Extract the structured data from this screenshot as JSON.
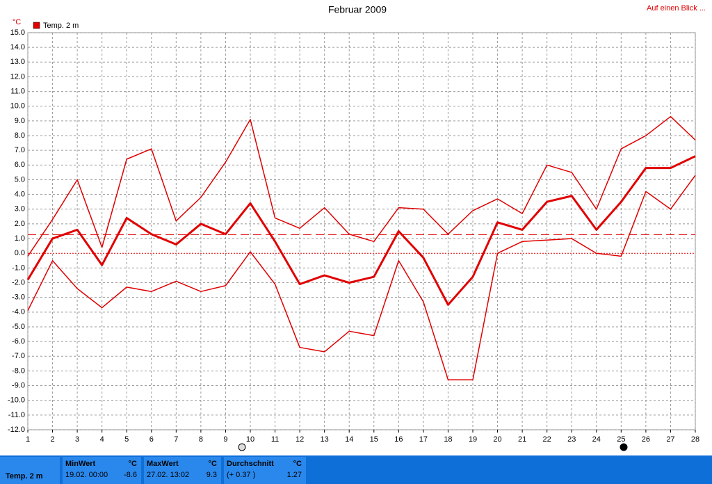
{
  "chart_data": {
    "type": "line",
    "title": "Februar 2009",
    "link": "Auf einen Blick ...",
    "y_label": "°C",
    "x": [
      1,
      2,
      3,
      4,
      5,
      6,
      7,
      8,
      9,
      10,
      11,
      12,
      13,
      14,
      15,
      16,
      17,
      18,
      19,
      20,
      21,
      22,
      23,
      24,
      25,
      26,
      27,
      28
    ],
    "xlim": [
      1,
      28
    ],
    "xticks": [
      1,
      2,
      3,
      4,
      5,
      6,
      7,
      8,
      9,
      10,
      11,
      12,
      13,
      14,
      15,
      16,
      17,
      18,
      19,
      20,
      21,
      22,
      23,
      24,
      25,
      26,
      27,
      28
    ],
    "ylim": [
      -12,
      15
    ],
    "yticks": [
      {
        "value": 15,
        "label": "15.0"
      },
      {
        "value": 14,
        "label": "14.0"
      },
      {
        "value": 13,
        "label": "13.0"
      },
      {
        "value": 12,
        "label": "12.0"
      },
      {
        "value": 11,
        "label": "11.0"
      },
      {
        "value": 10,
        "label": "10.0"
      },
      {
        "value": 9,
        "label": "9.0"
      },
      {
        "value": 8,
        "label": "8.0"
      },
      {
        "value": 7,
        "label": "7.0"
      },
      {
        "value": 6,
        "label": "6.0"
      },
      {
        "value": 5,
        "label": "5.0"
      },
      {
        "value": 4,
        "label": "4.0"
      },
      {
        "value": 3,
        "label": "3.0"
      },
      {
        "value": 2,
        "label": "2.0"
      },
      {
        "value": 1,
        "label": "1.0"
      },
      {
        "value": 0,
        "label": "0.0"
      },
      {
        "value": -1,
        "label": "-1.0"
      },
      {
        "value": -2,
        "label": "-2.0"
      },
      {
        "value": -3,
        "label": "-3.0"
      },
      {
        "value": -4,
        "label": "-4.0"
      },
      {
        "value": -5,
        "label": "-5.0"
      },
      {
        "value": -6,
        "label": "-6.0"
      },
      {
        "value": -7,
        "label": "-7.0"
      },
      {
        "value": -8,
        "label": "-8.0"
      },
      {
        "value": -9,
        "label": "-9.0"
      },
      {
        "value": -10,
        "label": "-10.0"
      },
      {
        "value": -11,
        "label": "-11.0"
      },
      {
        "value": -12,
        "label": "-12.0"
      }
    ],
    "grid": true,
    "legend": {
      "name": "Temp. 2 m",
      "color": "#e00000"
    },
    "series": [
      {
        "color": "#e00000",
        "values": [
          -0.2,
          2.3,
          5.0,
          0.4,
          6.4,
          7.1,
          2.2,
          3.8,
          6.2,
          9.1,
          2.4,
          1.7,
          3.1,
          1.3,
          0.8,
          3.1,
          3.0,
          1.3,
          2.9,
          3.7,
          2.7,
          6.0,
          5.5,
          3.0,
          7.1,
          8.0,
          9.3,
          7.7
        ]
      },
      {
        "color": "#e00000",
        "values": [
          -1.8,
          1.0,
          1.6,
          -0.8,
          2.4,
          1.3,
          0.6,
          2.0,
          1.3,
          3.4,
          0.8,
          -2.1,
          -1.5,
          -2.0,
          -1.6,
          1.5,
          -0.3,
          -3.5,
          -1.6,
          2.1,
          1.6,
          3.5,
          3.9,
          1.6,
          3.5,
          5.8,
          5.8,
          6.6
        ]
      },
      {
        "color": "#e00000",
        "values": [
          -3.9,
          -0.5,
          -2.4,
          -3.7,
          -2.3,
          -2.6,
          -1.9,
          -2.6,
          -2.2,
          0.1,
          -2.1,
          -6.4,
          -6.7,
          -5.3,
          -5.6,
          -0.5,
          -3.3,
          -8.6,
          -8.6,
          0.0,
          0.8,
          0.9,
          1.0,
          0.0,
          -0.2,
          4.2,
          3.0,
          5.3
        ]
      }
    ],
    "average": 1.27
  },
  "footer": {
    "name": "Temp. 2 m",
    "cells": [
      {
        "title": "MinWert",
        "unit": "°C",
        "time": "19.02.  00:00",
        "value": "-8.6"
      },
      {
        "title": "MaxWert",
        "unit": "°C",
        "time": "27.02.  13:02",
        "value": "9.3"
      },
      {
        "title": "Durchschnitt",
        "unit": "°C",
        "time": "(+ 0.37 )",
        "value": "1.27"
      }
    ]
  }
}
